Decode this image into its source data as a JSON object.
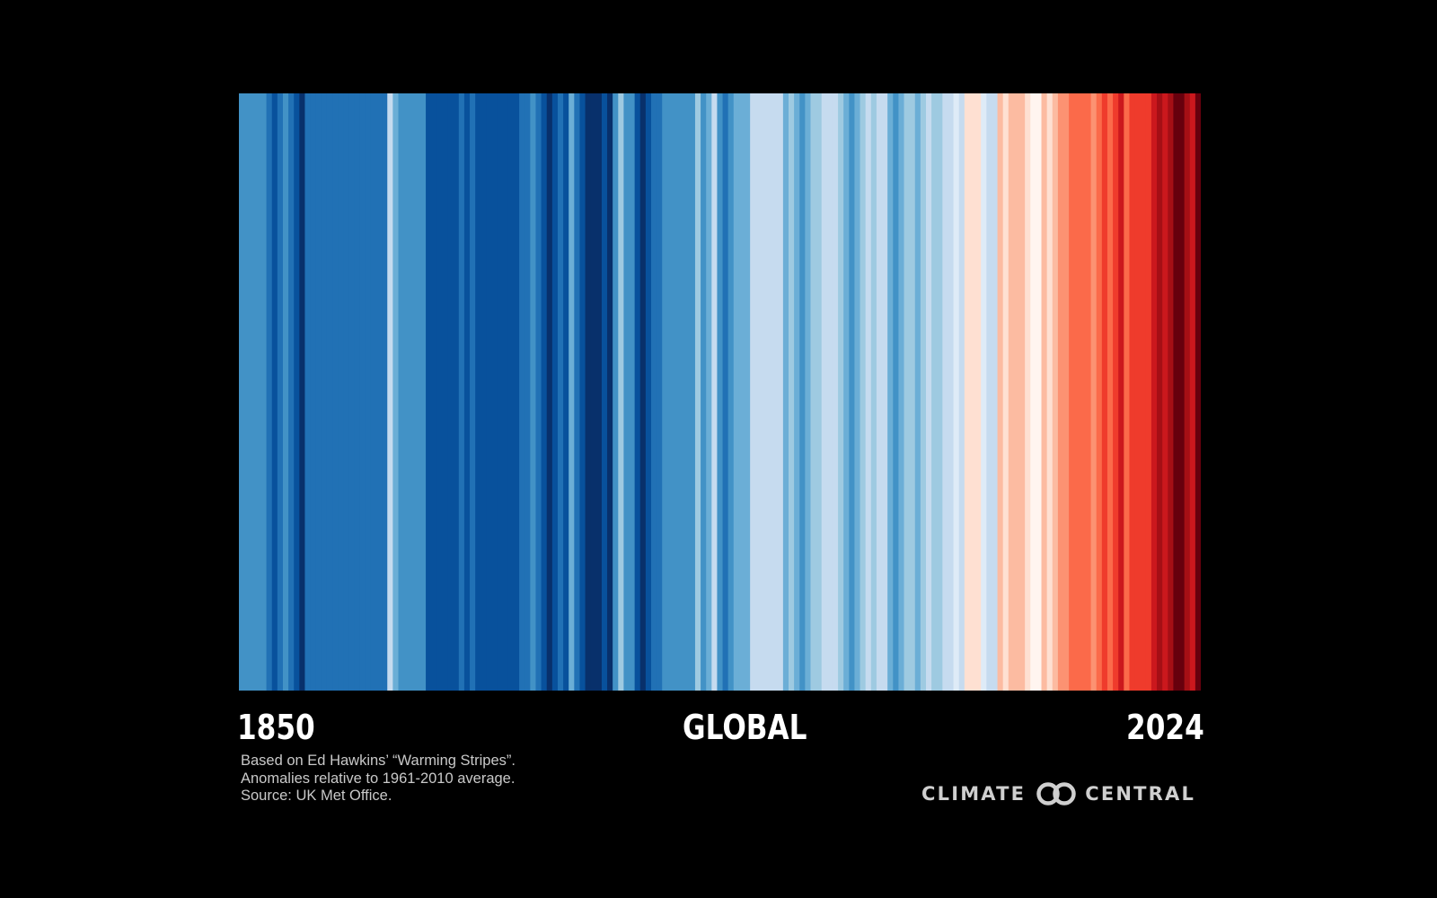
{
  "labels": {
    "start_year": "1850",
    "region": "GLOBAL",
    "end_year": "2024"
  },
  "credits": [
    "Based on Ed Hawkins’ “Warming Stripes”.",
    "Anomalies relative to 1961-2010 average.",
    "Source: UK Met Office."
  ],
  "brand": {
    "left_word": "CLIMATE",
    "right_word": "CENTRAL",
    "logo_icon": "interlocking-circles-icon"
  },
  "chart_data": {
    "type": "heatmap",
    "x_start": 1850,
    "x_end": 2024,
    "stripe_colors": [
      "#4292c6",
      "#4292c6",
      "#4292c6",
      "#4292c6",
      "#4292c6",
      "#2171b5",
      "#08519c",
      "#2171b5",
      "#4292c6",
      "#2171b5",
      "#08519c",
      "#08306b",
      "#2171b5",
      "#2171b5",
      "#2171b5",
      "#2171b5",
      "#2171b5",
      "#2171b5",
      "#2171b5",
      "#2171b5",
      "#2171b5",
      "#2171b5",
      "#2171b5",
      "#2171b5",
      "#2171b5",
      "#2171b5",
      "#2171b5",
      "#c6dbef",
      "#6baed6",
      "#4292c6",
      "#4292c6",
      "#4292c6",
      "#4292c6",
      "#4292c6",
      "#08519c",
      "#08519c",
      "#08519c",
      "#08519c",
      "#08519c",
      "#08519c",
      "#2171b5",
      "#08519c",
      "#2171b5",
      "#08519c",
      "#08519c",
      "#08519c",
      "#08519c",
      "#08519c",
      "#08519c",
      "#08519c",
      "#08519c",
      "#2171b5",
      "#2171b5",
      "#4292c6",
      "#2171b5",
      "#08519c",
      "#08306b",
      "#08519c",
      "#2171b5",
      "#08519c",
      "#6baed6",
      "#2171b5",
      "#08519c",
      "#08306b",
      "#08306b",
      "#08306b",
      "#08519c",
      "#08306b",
      "#4292c6",
      "#9ecae1",
      "#4292c6",
      "#4292c6",
      "#08519c",
      "#08306b",
      "#08519c",
      "#2171b5",
      "#2171b5",
      "#4292c6",
      "#4292c6",
      "#4292c6",
      "#4292c6",
      "#4292c6",
      "#4292c6",
      "#9ecae1",
      "#4292c6",
      "#6baed6",
      "#c6dbef",
      "#4292c6",
      "#2171b5",
      "#4292c6",
      "#6baed6",
      "#6baed6",
      "#6baed6",
      "#c6dbef",
      "#c6dbef",
      "#c6dbef",
      "#c6dbef",
      "#c6dbef",
      "#c6dbef",
      "#6baed6",
      "#9ecae1",
      "#6baed6",
      "#4292c6",
      "#6baed6",
      "#9ecae1",
      "#9ecae1",
      "#c6dbef",
      "#c6dbef",
      "#c6dbef",
      "#9ecae1",
      "#6baed6",
      "#4292c6",
      "#6baed6",
      "#9ecae1",
      "#c6dbef",
      "#9ecae1",
      "#c6dbef",
      "#c6dbef",
      "#6baed6",
      "#4292c6",
      "#6baed6",
      "#9ecae1",
      "#9ecae1",
      "#6baed6",
      "#9ecae1",
      "#c6dbef",
      "#9ecae1",
      "#9ecae1",
      "#c6dbef",
      "#c6dbef",
      "#deebf7",
      "#c6dbef",
      "#fee0d2",
      "#fee0d2",
      "#fee0d2",
      "#deebf7",
      "#c6dbef",
      "#c6dbef",
      "#fcbba1",
      "#fee0d2",
      "#fcbba1",
      "#fcbba1",
      "#fcbba1",
      "#fee0d2",
      "#fff5f0",
      "#fff5f0",
      "#fcbba1",
      "#fee0d2",
      "#fcbba1",
      "#fc9272",
      "#fc9272",
      "#fb6a4a",
      "#fb6a4a",
      "#fb6a4a",
      "#fb6a4a",
      "#fc9272",
      "#fb6a4a",
      "#ef3b2c",
      "#fb6a4a",
      "#ef3b2c",
      "#cb181d",
      "#fb6a4a",
      "#ef3b2c",
      "#ef3b2c",
      "#ef3b2c",
      "#ef3b2c",
      "#cb181d",
      "#a50f15",
      "#cb181d",
      "#a50f15",
      "#67000d",
      "#67000d",
      "#a50f15",
      "#cb181d",
      "#67000d"
    ]
  }
}
